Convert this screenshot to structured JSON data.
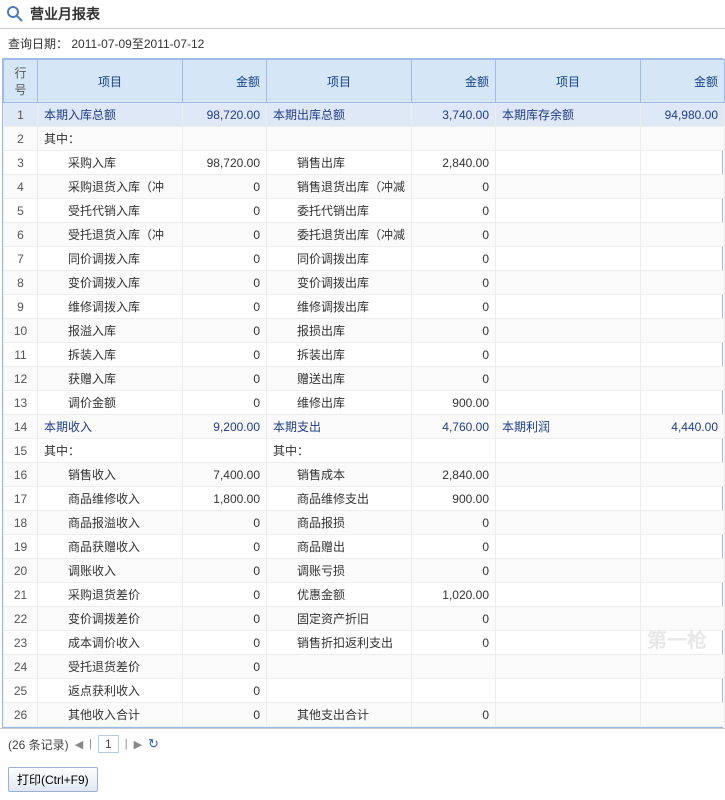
{
  "header": {
    "title": "营业月报表",
    "query_label": "查询日期：",
    "query_value": "2011-07-09至2011-07-12"
  },
  "columns": [
    "行号",
    "项目",
    "金额",
    "项目",
    "金额",
    "项目",
    "金额"
  ],
  "rows": [
    {
      "n": 1,
      "hl": true,
      "c": [
        "本期入库总额",
        "98,720.00",
        "本期出库总额",
        "3,740.00",
        "本期库存余额",
        "94,980.00"
      ],
      "link": true
    },
    {
      "n": 2,
      "c": [
        "其中：",
        "",
        "",
        "",
        "",
        ""
      ]
    },
    {
      "n": 3,
      "c": [
        "采购入库",
        "98,720.00",
        "销售出库",
        "2,840.00",
        "",
        ""
      ],
      "indent": true
    },
    {
      "n": 4,
      "c": [
        "采购退货入库（冲",
        "0",
        "销售退货出库（冲减",
        "0",
        "",
        ""
      ],
      "indent": true
    },
    {
      "n": 5,
      "c": [
        "受托代销入库",
        "0",
        "委托代销出库",
        "0",
        "",
        ""
      ],
      "indent": true
    },
    {
      "n": 6,
      "c": [
        "受托退货入库（冲",
        "0",
        "委托退货出库（冲减",
        "0",
        "",
        ""
      ],
      "indent": true
    },
    {
      "n": 7,
      "c": [
        "同价调拨入库",
        "0",
        "同价调拨出库",
        "0",
        "",
        ""
      ],
      "indent": true
    },
    {
      "n": 8,
      "c": [
        "变价调拨入库",
        "0",
        "变价调拨出库",
        "0",
        "",
        ""
      ],
      "indent": true
    },
    {
      "n": 9,
      "c": [
        "维修调拨入库",
        "0",
        "维修调拨出库",
        "0",
        "",
        ""
      ],
      "indent": true
    },
    {
      "n": 10,
      "c": [
        "报溢入库",
        "0",
        "报损出库",
        "0",
        "",
        ""
      ],
      "indent": true
    },
    {
      "n": 11,
      "c": [
        "拆装入库",
        "0",
        "拆装出库",
        "0",
        "",
        ""
      ],
      "indent": true
    },
    {
      "n": 12,
      "c": [
        "获赠入库",
        "0",
        "赠送出库",
        "0",
        "",
        ""
      ],
      "indent": true
    },
    {
      "n": 13,
      "c": [
        "调价金额",
        "0",
        "维修出库",
        "900.00",
        "",
        ""
      ],
      "indent": true
    },
    {
      "n": 14,
      "c": [
        "本期收入",
        "9,200.00",
        "本期支出",
        "4,760.00",
        "本期利润",
        "4,440.00"
      ],
      "link": true
    },
    {
      "n": 15,
      "c": [
        "其中：",
        "",
        "其中：",
        "",
        "",
        ""
      ]
    },
    {
      "n": 16,
      "c": [
        "销售收入",
        "7,400.00",
        "销售成本",
        "2,840.00",
        "",
        ""
      ],
      "indent": true
    },
    {
      "n": 17,
      "c": [
        "商品维修收入",
        "1,800.00",
        "商品维修支出",
        "900.00",
        "",
        ""
      ],
      "indent": true
    },
    {
      "n": 18,
      "c": [
        "商品报溢收入",
        "0",
        "商品报损",
        "0",
        "",
        ""
      ],
      "indent": true
    },
    {
      "n": 19,
      "c": [
        "商品获赠收入",
        "0",
        "商品赠出",
        "0",
        "",
        ""
      ],
      "indent": true
    },
    {
      "n": 20,
      "c": [
        "调账收入",
        "0",
        "调账亏损",
        "0",
        "",
        ""
      ],
      "indent": true
    },
    {
      "n": 21,
      "c": [
        "采购退货差价",
        "0",
        "优惠金额",
        "1,020.00",
        "",
        ""
      ],
      "indent": true
    },
    {
      "n": 22,
      "c": [
        "变价调拨差价",
        "0",
        "固定资产折旧",
        "0",
        "",
        ""
      ],
      "indent": true
    },
    {
      "n": 23,
      "c": [
        "成本调价收入",
        "0",
        "销售折扣返利支出",
        "0",
        "",
        ""
      ],
      "indent": true
    },
    {
      "n": 24,
      "c": [
        "受托退货差价",
        "0",
        "",
        "",
        "",
        ""
      ],
      "indent": true
    },
    {
      "n": 25,
      "c": [
        "返点获利收入",
        "0",
        "",
        "",
        "",
        ""
      ],
      "indent": true
    },
    {
      "n": 26,
      "c": [
        "其他收入合计",
        "0",
        "其他支出合计",
        "0",
        "",
        ""
      ],
      "indent": true
    }
  ],
  "pager": {
    "record_text": "(26 条记录)",
    "page": "1"
  },
  "footer": {
    "print_label": "打印(Ctrl+F9)"
  },
  "watermark": "第一枪"
}
